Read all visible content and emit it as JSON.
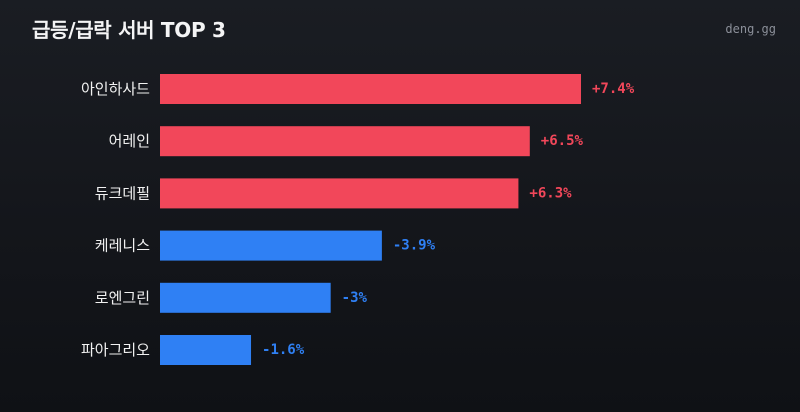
{
  "header": {
    "title": "급등/급락 서버 TOP 3",
    "source": "deng.gg"
  },
  "colors": {
    "up": "#f2475a",
    "down": "#2f80f4",
    "background": "#17191e"
  },
  "chart_data": {
    "type": "bar",
    "orientation": "horizontal",
    "title": "급등/급락 서버 TOP 3",
    "xlabel": "",
    "ylabel": "",
    "categories": [
      "아인하사드",
      "어레인",
      "듀크데필",
      "케레니스",
      "로엔그린",
      "파아그리오"
    ],
    "values": [
      7.4,
      6.5,
      6.3,
      -3.9,
      -3,
      -1.6
    ],
    "labels": [
      "+7.4%",
      "+6.5%",
      "+6.3%",
      "-3.9%",
      "-3%",
      "-1.6%"
    ],
    "grid": false,
    "legend": "none"
  }
}
